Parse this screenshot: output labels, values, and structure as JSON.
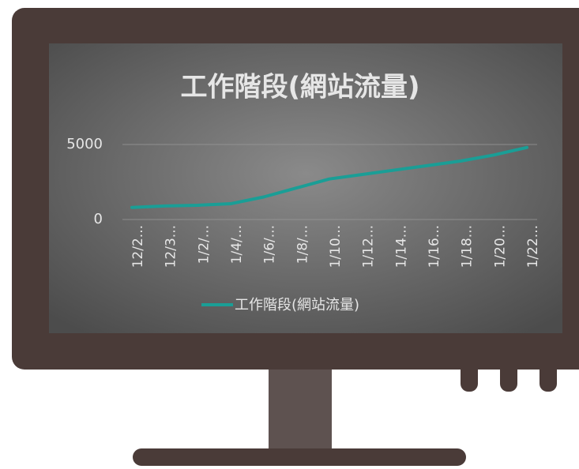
{
  "chart_data": {
    "type": "line",
    "title": "工作階段(網站流量)",
    "categories": [
      "12/2...",
      "12/3...",
      "1/2/...",
      "1/4/...",
      "1/6/...",
      "1/8/...",
      "1/10...",
      "1/12...",
      "1/14...",
      "1/16...",
      "1/18...",
      "1/20...",
      "1/22..."
    ],
    "series": [
      {
        "name": "工作階段(網站流量)",
        "color": "#1a9e96",
        "values": [
          800,
          900,
          950,
          1050,
          1500,
          2100,
          2700,
          3000,
          3300,
          3600,
          3900,
          4300,
          4800
        ]
      }
    ],
    "ylim": [
      0,
      5000
    ],
    "yticks": [
      0,
      5000
    ],
    "grid": true,
    "legend": "bottom"
  }
}
